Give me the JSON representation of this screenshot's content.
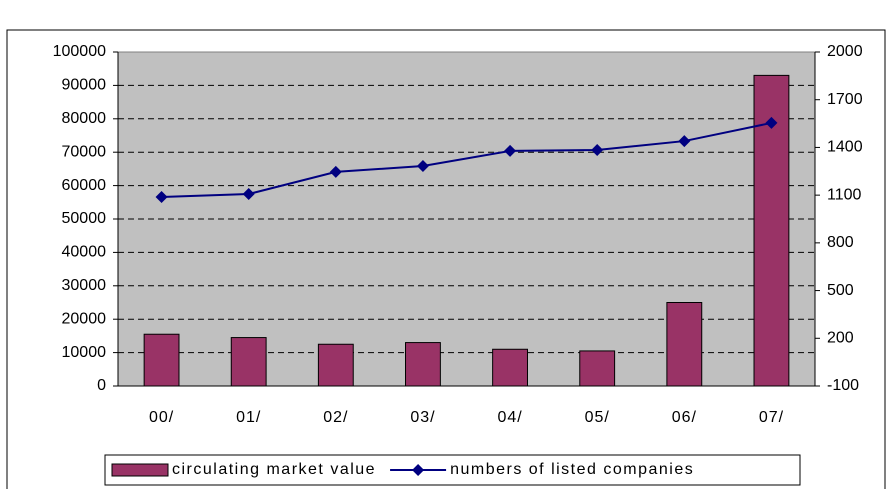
{
  "chart_data": {
    "type": "bar-line",
    "categories": [
      "00/",
      "01/",
      "02/",
      "03/",
      "04/",
      "05/",
      "06/",
      "07/"
    ],
    "series": [
      {
        "name": "circulating market value",
        "color": "#993366",
        "type": "bar",
        "values": [
          15500,
          14500,
          12500,
          13000,
          11000,
          10500,
          25000,
          93000
        ]
      },
      {
        "name": "numbers of listed companies",
        "color": "#000080",
        "type": "line",
        "axis": "y2",
        "values": [
          1088,
          1107,
          1246,
          1283,
          1378,
          1384,
          1440,
          1554
        ]
      }
    ],
    "ylim": [
      0,
      100000
    ],
    "yticks": [
      0,
      10000,
      20000,
      30000,
      40000,
      50000,
      60000,
      70000,
      80000,
      90000,
      100000
    ],
    "y2lim": [
      -100,
      2000
    ],
    "y2ticks": [
      -100,
      200,
      500,
      800,
      1100,
      1400,
      1700,
      2000
    ],
    "grid": true,
    "legend": "bottom"
  }
}
